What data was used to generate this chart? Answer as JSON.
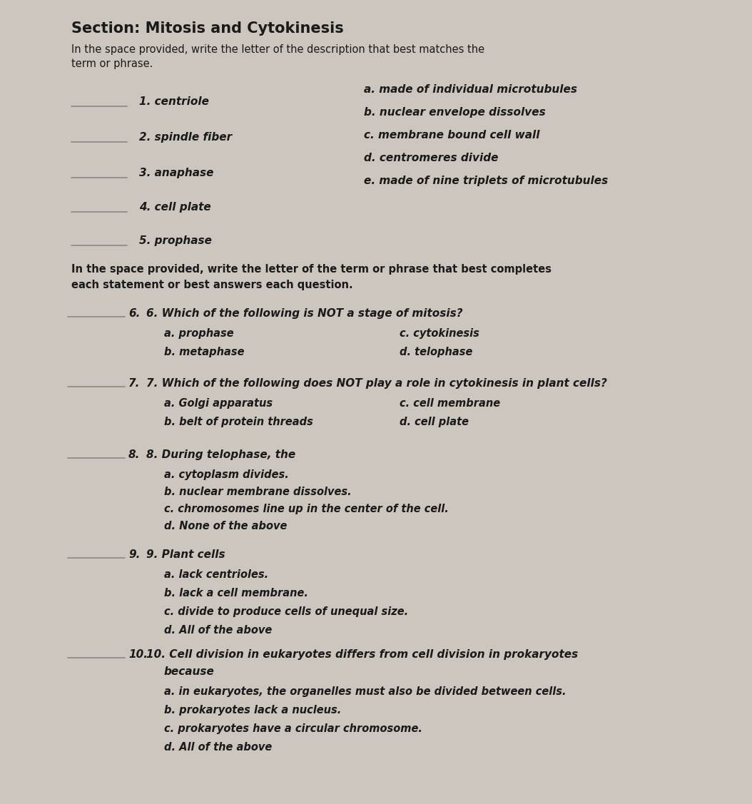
{
  "bg_color": "#ccc6be",
  "text_color": "#1a1a1a",
  "title": "Section: Mitosis and Cytokinesis",
  "instruction1_line1": "In the space provided, write the letter of the description that best matches the",
  "instruction1_line2": "term or phrase.",
  "matching_terms": [
    "1. centriole",
    "2. spindle fiber",
    "3. anaphase",
    "4. cell plate",
    "5. prophase"
  ],
  "matching_descriptions": [
    "a. made of individual microtubules",
    "b. nuclear envelope dissolves",
    "c. membrane bound cell wall",
    "d. centromeres divide",
    "e. made of nine triplets of microtubules"
  ],
  "instruction2_line1": "In the space provided, write the letter of the term or phrase that best completes",
  "instruction2_line2": "each statement or best answers each question.",
  "q6_text": "6. Which of the following is NOT a stage of mitosis?",
  "q6_opts_left": [
    "a. prophase",
    "b. metaphase"
  ],
  "q6_opts_right": [
    "c. cytokinesis",
    "d. telophase"
  ],
  "q7_text": "7. Which of the following does NOT play a role in cytokinesis in plant cells?",
  "q7_opts_left": [
    "a. Golgi apparatus",
    "b. belt of protein threads"
  ],
  "q7_opts_right": [
    "c. cell membrane",
    "d. cell plate"
  ],
  "q8_text": "8. During telophase, the",
  "q8_opts": [
    "a. cytoplasm divides.",
    "b. nuclear membrane dissolves.",
    "c. chromosomes line up in the center of the cell.",
    "d. None of the above"
  ],
  "q9_text": "9. Plant cells",
  "q9_opts": [
    "a. lack centrioles.",
    "b. lack a cell membrane.",
    "c. divide to produce cells of unequal size.",
    "d. All of the above"
  ],
  "q10_text_line1": "10. Cell division in eukaryotes differs from cell division in prokaryotes",
  "q10_text_line2": "because",
  "q10_opts": [
    "a. in eukaryotes, the organelles must also be divided between cells.",
    "b. prokaryotes lack a nucleus.",
    "c. prokaryotes have a circular chromosome.",
    "d. All of the above"
  ],
  "line_color": "#888888",
  "title_fontsize": 15,
  "body_fontsize": 11,
  "instr_fontsize": 10.5,
  "option_fontsize": 10.5
}
